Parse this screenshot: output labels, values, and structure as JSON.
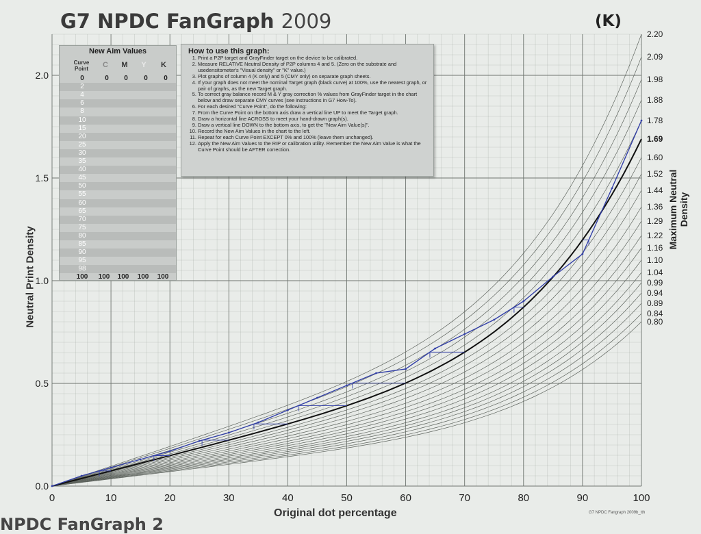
{
  "header": {
    "title_main": "G7 NPDC FanGraph",
    "title_year": "2009",
    "badge": "(K)"
  },
  "aim_panel": {
    "title": "New Aim Values",
    "col_curve_point": "Curve Point",
    "col_c": "C",
    "col_m": "M",
    "col_y": "Y",
    "col_k": "K",
    "rows": [
      "0",
      "2",
      "4",
      "6",
      "8",
      "10",
      "15",
      "20",
      "25",
      "30",
      "35",
      "40",
      "45",
      "50",
      "55",
      "60",
      "65",
      "70",
      "75",
      "80",
      "85",
      "90",
      "95",
      "98",
      "100"
    ],
    "first_values": [
      "0",
      "0",
      "0",
      "0"
    ],
    "last_values": [
      "100",
      "100",
      "100",
      "100"
    ]
  },
  "howto": {
    "title": "How to use this graph:",
    "steps": [
      "Print a P2P target and GrayFinder target on the device to be calibrated.",
      "Measure RELATIVE Neutral Density of P2P columns 4 and 5. (Zero on the substrate and usedensitometer's \"Visual density\" or \"K\" value.)",
      "Plot graphs of column 4 (K only) and 5 (CMY only) on separate graph sheets.",
      "If your graph does not meet the nominal Target graph (black curve) at 100%, use the nearest graph, or pair of graphs, as the new Target graph.",
      "To correct gray balance record M & Y gray correction % values from GrayFinder target in the chart below and draw separate CMY curves (see instructions in G7 How-To).",
      "For each desired \"Curve Point\", do the following:",
      "From the Curve Point on the bottom axis draw a vertical line UP to meet the Target graph.",
      "Draw a horizontal line ACROSS to meet your hand-drawn graph(s).",
      "Draw a vertical line DOWN to the bottom axis, to get the \"New Aim Value(s)\".",
      "Record the New Aim Values in the chart to the left.",
      "Repeat for each Curve Point EXCEPT 0% and 100% (leave them unchanged).",
      "Apply the New Aim Values to the RIP or calibration utility. Remember the New Aim Value is what the Curve Point should be AFTER correction."
    ]
  },
  "footer_note": "G7 NPDC Fangraph 2009b_tth",
  "bottom_ghost": "NPDC FanGraph 2",
  "chart_data": {
    "type": "line",
    "xlabel": "Original dot percentage",
    "ylabel": "Neutral Print Density",
    "ylabel_right": "Maximum Neutral Density",
    "xlim": [
      0,
      100
    ],
    "ylim": [
      0,
      2.2
    ],
    "x_ticks": [
      0,
      10,
      20,
      30,
      40,
      50,
      60,
      70,
      80,
      90,
      100
    ],
    "y_ticks": [
      0.0,
      0.5,
      1.0,
      1.5,
      2.0
    ],
    "y_tick_labels": [
      "0.0",
      "0.5",
      "1.0",
      "1.5",
      "2.0"
    ],
    "right_labels": [
      "2.20",
      "2.09",
      "1.98",
      "1.88",
      "1.78",
      "1.69",
      "1.60",
      "1.52",
      "1.44",
      "1.36",
      "1.29",
      "1.22",
      "1.16",
      "1.10",
      "1.04",
      "0.99",
      "0.94",
      "0.89",
      "0.84",
      "0.80"
    ],
    "target_dmax": 1.69,
    "grid": true,
    "curve_colors": {
      "fan": "#5f655f",
      "target": "#111111",
      "measured": "#3340a8",
      "grid": "#9aa19b"
    },
    "measured": {
      "x": [
        0,
        5,
        10,
        15,
        20,
        25,
        30,
        35,
        40,
        45,
        50,
        55,
        60,
        65,
        70,
        75,
        80,
        85,
        90,
        95,
        100
      ],
      "y": [
        0.0,
        0.05,
        0.09,
        0.13,
        0.17,
        0.22,
        0.26,
        0.31,
        0.37,
        0.43,
        0.49,
        0.55,
        0.57,
        0.67,
        0.74,
        0.81,
        0.9,
        1.02,
        1.13,
        1.45,
        1.78
      ]
    }
  }
}
